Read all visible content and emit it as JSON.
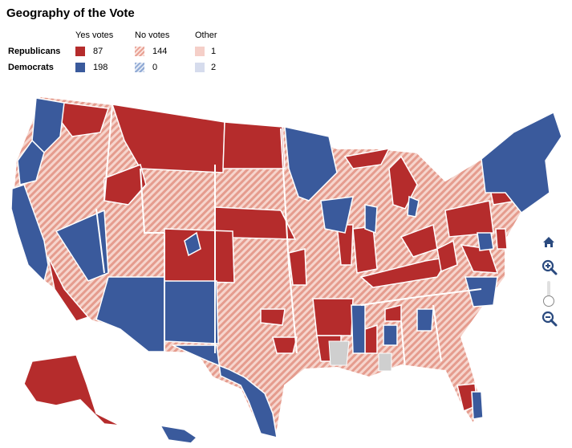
{
  "title": "Geography of the Vote",
  "legend": {
    "columns": [
      "Yes votes",
      "No votes",
      "Other"
    ],
    "rows": [
      {
        "party": "Republicans",
        "yes": "87",
        "no": "144",
        "other": "1"
      },
      {
        "party": "Democrats",
        "yes": "198",
        "no": "0",
        "other": "2"
      }
    ]
  },
  "colors": {
    "rep_yes": "#b52c2c",
    "rep_no": "#e8a194",
    "rep_other": "#f5cfc8",
    "dem_yes": "#3a5a9c",
    "dem_no": "#8fa9d4",
    "dem_other": "#d6dced",
    "no_data": "#cccccc",
    "control_blue": "#2a4a7f"
  },
  "controls": {
    "home": "home-icon",
    "zoom_in": "zoom-in-icon",
    "zoom_out": "zoom-out-icon",
    "zoom_level": 0.3
  }
}
